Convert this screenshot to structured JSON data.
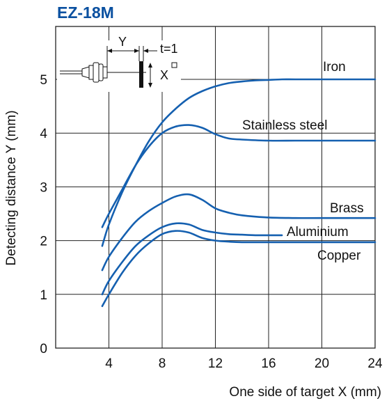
{
  "chart_data": {
    "type": "line",
    "title": "EZ-18M",
    "xlabel": "One side of target X (mm)",
    "ylabel": "Detecting distance Y (mm)",
    "xlim": [
      0,
      24
    ],
    "ylim": [
      0,
      5.5
    ],
    "x_ticks": [
      4,
      8,
      12,
      16,
      20,
      24
    ],
    "y_ticks": [
      0,
      1,
      2,
      3,
      4,
      5
    ],
    "grid": true,
    "line_color": "#1560b0",
    "series": [
      {
        "name": "Iron",
        "x": [
          3.5,
          4.0,
          5.0,
          6.0,
          7.0,
          8.0,
          9.0,
          10.0,
          11.0,
          12.0,
          13.0,
          14.0,
          15.0,
          16.0,
          17.0,
          18.0,
          20.0,
          22.0,
          24.0
        ],
        "y": [
          1.9,
          2.3,
          2.9,
          3.4,
          3.85,
          4.2,
          4.45,
          4.65,
          4.78,
          4.87,
          4.93,
          4.96,
          4.98,
          4.99,
          5.0,
          5.0,
          5.0,
          5.0,
          5.0
        ]
      },
      {
        "name": "Stainless steel",
        "x": [
          3.5,
          4.0,
          5.0,
          6.0,
          7.0,
          8.0,
          9.0,
          10.0,
          11.0,
          12.0,
          13.0,
          14.0,
          16.0,
          18.0,
          20.0,
          24.0
        ],
        "y": [
          2.25,
          2.5,
          2.95,
          3.4,
          3.75,
          4.0,
          4.12,
          4.15,
          4.1,
          3.98,
          3.9,
          3.88,
          3.86,
          3.86,
          3.86,
          3.86
        ]
      },
      {
        "name": "Brass",
        "x": [
          3.5,
          4.0,
          5.0,
          6.0,
          7.0,
          8.0,
          9.0,
          10.0,
          11.0,
          12.0,
          13.0,
          14.0,
          16.0,
          18.0,
          20.0,
          24.0
        ],
        "y": [
          1.45,
          1.7,
          2.05,
          2.35,
          2.55,
          2.7,
          2.82,
          2.86,
          2.76,
          2.6,
          2.52,
          2.47,
          2.43,
          2.42,
          2.42,
          2.42
        ]
      },
      {
        "name": "Aluminium",
        "x": [
          3.5,
          4.0,
          5.0,
          6.0,
          7.0,
          8.0,
          9.0,
          10.0,
          11.0,
          12.0,
          13.0,
          14.0,
          15.0,
          16.0,
          17.0
        ],
        "y": [
          1.0,
          1.25,
          1.6,
          1.9,
          2.1,
          2.25,
          2.32,
          2.3,
          2.2,
          2.15,
          2.12,
          2.11,
          2.1,
          2.1,
          2.1
        ]
      },
      {
        "name": "Copper",
        "x": [
          3.5,
          4.0,
          5.0,
          6.0,
          7.0,
          8.0,
          9.0,
          10.0,
          11.0,
          12.0,
          13.0,
          14.0,
          16.0,
          18.0,
          20.0,
          24.0
        ],
        "y": [
          0.78,
          1.0,
          1.4,
          1.72,
          1.95,
          2.12,
          2.18,
          2.15,
          2.05,
          2.0,
          1.98,
          1.97,
          1.97,
          1.97,
          1.97,
          1.97
        ]
      }
    ],
    "inset": {
      "y_label": "Y",
      "t_label": "t=1",
      "x_label": "X"
    }
  }
}
